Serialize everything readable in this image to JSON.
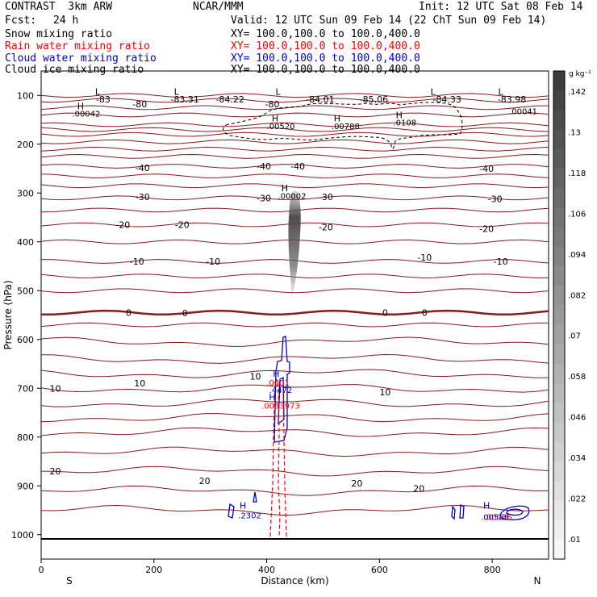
{
  "header": {
    "title_left": "CONTRAST  3km ARW",
    "title_center": "NCAR/MMM",
    "init": "Init: 12 UTC Sat 08 Feb 14",
    "fcst_label": "Fcst:",
    "fcst_value": "24 h",
    "valid": "Valid: 12 UTC Sun 09 Feb 14 (22 ChT Sun 09 Feb 14)",
    "fields": [
      {
        "name": "Snow mixing ratio",
        "xy": "XY= 100.0,100.0 to 100.0,400.0",
        "color": "#000000"
      },
      {
        "name": "Rain water mixing ratio",
        "xy": "XY= 100.0,100.0 to 100.0,400.0",
        "color": "#ff0000"
      },
      {
        "name": "Cloud water mixing ratio",
        "xy": "XY= 100.0,100.0 to 100.0,400.0",
        "color": "#0000cc"
      },
      {
        "name": "Cloud ice mixing ratio",
        "xy": "XY= 100.0,100.0 to 100.0,400.0",
        "color": "#000000"
      }
    ]
  },
  "chart_data": {
    "type": "contour",
    "xlabel": "Distance (km)",
    "ylabel": "Pressure (hPa)",
    "xlim": [
      0,
      900
    ],
    "ylim": [
      1050,
      50
    ],
    "x_ticks": [
      "0",
      "200",
      "400",
      "600",
      "800"
    ],
    "y_ticks": [
      "100",
      "200",
      "300",
      "400",
      "500",
      "600",
      "700",
      "800",
      "900",
      "1000"
    ],
    "x_end_labels": {
      "left": "S",
      "right": "N"
    },
    "temperature_color": "#8b1a1a",
    "temperature_contours": [
      {
        "level": "-83",
        "x": 110,
        "p": 108
      },
      {
        "level": "-80",
        "x": 175,
        "p": 118
      },
      {
        "level": "-83.31",
        "x": 255,
        "p": 108
      },
      {
        "level": "-84.22",
        "x": 335,
        "p": 108
      },
      {
        "level": "-80",
        "x": 410,
        "p": 118
      },
      {
        "level": "-84.01",
        "x": 495,
        "p": 108
      },
      {
        "level": "-85.06",
        "x": 590,
        "p": 108
      },
      {
        "level": "-84.33",
        "x": 720,
        "p": 108
      },
      {
        "level": "-83.98",
        "x": 835,
        "p": 108
      },
      {
        "level": "-40",
        "x": 180,
        "p": 248
      },
      {
        "level": "-40",
        "x": 395,
        "p": 245
      },
      {
        "level": "-40",
        "x": 455,
        "p": 245
      },
      {
        "level": "-40",
        "x": 790,
        "p": 250
      },
      {
        "level": "-30",
        "x": 180,
        "p": 308
      },
      {
        "level": "-30",
        "x": 395,
        "p": 310
      },
      {
        "level": "-30",
        "x": 505,
        "p": 308
      },
      {
        "level": "-30",
        "x": 805,
        "p": 312
      },
      {
        "level": "-20",
        "x": 145,
        "p": 365
      },
      {
        "level": "-20",
        "x": 250,
        "p": 365
      },
      {
        "level": "-20",
        "x": 505,
        "p": 370
      },
      {
        "level": "-20",
        "x": 790,
        "p": 373
      },
      {
        "level": "-10",
        "x": 170,
        "p": 440
      },
      {
        "level": "-10",
        "x": 305,
        "p": 440
      },
      {
        "level": "-10",
        "x": 680,
        "p": 432
      },
      {
        "level": "-10",
        "x": 815,
        "p": 440
      },
      {
        "level": "0",
        "x": 155,
        "p": 545
      },
      {
        "level": "0",
        "x": 255,
        "p": 546
      },
      {
        "level": "0",
        "x": 610,
        "p": 545
      },
      {
        "level": "0",
        "x": 680,
        "p": 545
      },
      {
        "level": "10",
        "x": 25,
        "p": 700
      },
      {
        "level": "10",
        "x": 175,
        "p": 690
      },
      {
        "level": "10",
        "x": 380,
        "p": 676
      },
      {
        "level": "10",
        "x": 610,
        "p": 708
      },
      {
        "level": "20",
        "x": 25,
        "p": 870
      },
      {
        "level": "20",
        "x": 290,
        "p": 890
      },
      {
        "level": "20",
        "x": 560,
        "p": 895
      },
      {
        "level": "20",
        "x": 670,
        "p": 905
      }
    ],
    "extrema": [
      {
        "label": "L",
        "x": 100,
        "p": 92
      },
      {
        "label": "L",
        "x": 240,
        "p": 92
      },
      {
        "label": "L",
        "x": 420,
        "p": 92
      },
      {
        "label": "L",
        "x": 695,
        "p": 92
      },
      {
        "label": "L",
        "x": 815,
        "p": 92
      },
      {
        "label": "H",
        "x": 70,
        "p": 122
      },
      {
        "label": "H",
        "x": 415,
        "p": 147
      },
      {
        "label": "H",
        "x": 525,
        "p": 147
      },
      {
        "label": "H",
        "x": 635,
        "p": 140
      },
      {
        "label": "H",
        "x": 432,
        "p": 290
      },
      {
        "label": "H",
        "x": 417,
        "p": 670
      },
      {
        "label": "H",
        "x": 410,
        "p": 718
      },
      {
        "label": "H",
        "x": 358,
        "p": 940
      },
      {
        "label": "H",
        "x": 790,
        "p": 940
      }
    ],
    "snow_values": [
      {
        "text": ".00042",
        "x": 80,
        "p": 137
      },
      {
        "text": ".00041",
        "x": 855,
        "p": 132
      },
      {
        "text": ".00520",
        "x": 425,
        "p": 162
      },
      {
        "text": ".00788",
        "x": 540,
        "p": 162
      },
      {
        "text": ".0108",
        "x": 645,
        "p": 155
      },
      {
        "text": ".00002",
        "x": 445,
        "p": 305
      }
    ],
    "rain_values": [
      {
        "text": ".0001",
        "x": 420,
        "p": 688
      },
      {
        "text": ".0053973",
        "x": 425,
        "p": 735
      },
      {
        "text": ".00036",
        "x": 810,
        "p": 963
      }
    ],
    "cloud_water_values": [
      {
        "text": ".4472",
        "x": 425,
        "p": 703
      },
      {
        "text": ".2302",
        "x": 370,
        "p": 960
      },
      {
        "text": ".00588",
        "x": 805,
        "p": 963
      }
    ],
    "legend": {
      "unit": "g kg⁻¹",
      "ticks": [
        ".142",
        ".13",
        ".118",
        ".106",
        ".094",
        ".082",
        ".07",
        ".058",
        ".046",
        ".034",
        ".022",
        ".01"
      ],
      "values": [
        0.142,
        0.13,
        0.118,
        0.106,
        0.094,
        0.082,
        0.07,
        0.058,
        0.046,
        0.034,
        0.022,
        0.01
      ]
    }
  }
}
